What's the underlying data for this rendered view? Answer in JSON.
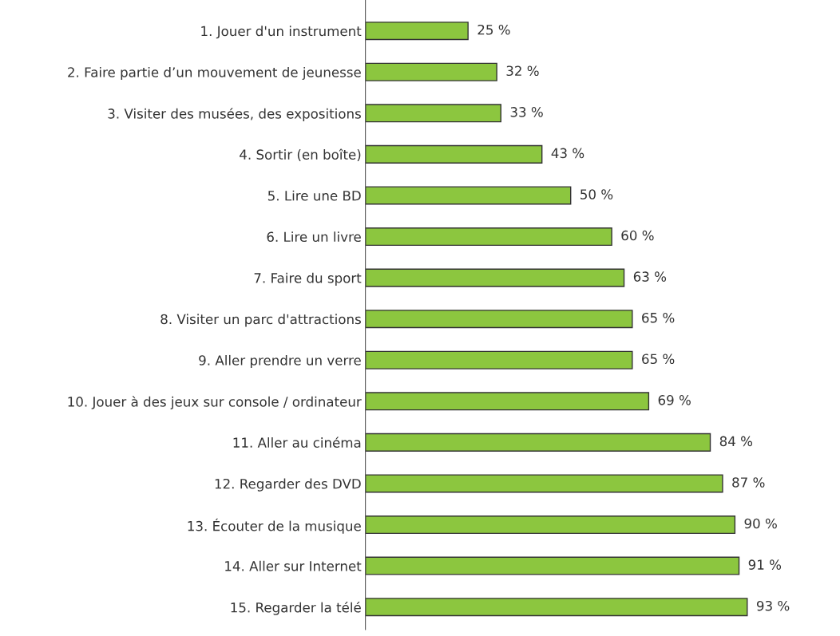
{
  "chart_data": {
    "type": "bar",
    "orientation": "horizontal",
    "categories": [
      "1. Jouer d'un instrument",
      "2. Faire partie d’un mouvement de jeunesse",
      "3. Visiter des musées, des expositions",
      "4. Sortir (en boîte)",
      "5. Lire une BD",
      "6. Lire un livre",
      "7. Faire du sport",
      "8. Visiter un parc d'attractions",
      "9. Aller prendre un verre",
      "10. Jouer à des jeux sur console / ordinateur",
      "11. Aller au cinéma",
      "12. Regarder des DVD",
      "13. Écouter de la musique",
      "14. Aller sur Internet",
      "15. Regarder la télé"
    ],
    "values": [
      25,
      32,
      33,
      43,
      50,
      60,
      63,
      65,
      65,
      69,
      84,
      87,
      90,
      91,
      93
    ],
    "value_labels": [
      "25 %",
      "32 %",
      "33 %",
      "43 %",
      "50 %",
      "60 %",
      "63 %",
      "65 %",
      "65 %",
      "69 %",
      "84 %",
      "87 %",
      "90 %",
      "91 %",
      "93 %"
    ],
    "color": "#8cc63f",
    "tick_labels": "y",
    "grid": false,
    "legend": false
  }
}
